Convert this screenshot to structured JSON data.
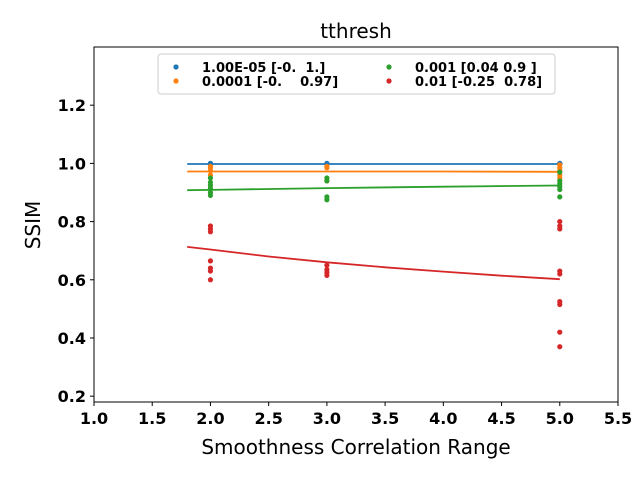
{
  "chart_data": {
    "type": "scatter",
    "title": "tthresh",
    "xlabel": "Smoothness Correlation Range",
    "ylabel": "SSIM",
    "xlim": [
      1.0,
      5.5
    ],
    "ylim": [
      0.18,
      1.4
    ],
    "xticks": [
      "1.0",
      "1.5",
      "2.0",
      "2.5",
      "3.0",
      "3.5",
      "4.0",
      "4.5",
      "5.0",
      "5.5"
    ],
    "yticks": [
      "0.2",
      "0.4",
      "0.6",
      "0.8",
      "1.0",
      "1.2"
    ],
    "grid": false,
    "legend_position": "top-center",
    "series": [
      {
        "name": "1.00E-05 [-0.  1.]",
        "color": "#1f77b4",
        "points": [
          [
            2,
            1.0
          ],
          [
            2,
            0.999
          ],
          [
            2,
            0.998
          ],
          [
            3,
            1.0
          ],
          [
            3,
            0.999
          ],
          [
            5,
            1.0
          ],
          [
            5,
            0.999
          ],
          [
            5,
            0.998
          ]
        ],
        "fit": [
          [
            1.8,
            0.998
          ],
          [
            2.0,
            0.998
          ],
          [
            3.0,
            0.998
          ],
          [
            4.0,
            0.998
          ],
          [
            5.0,
            0.998
          ]
        ]
      },
      {
        "name": "0.0001 [-0.    0.97]",
        "color": "#ff7f0e",
        "points": [
          [
            2,
            0.99
          ],
          [
            2,
            0.985
          ],
          [
            2,
            0.975
          ],
          [
            2,
            0.96
          ],
          [
            3,
            0.99
          ],
          [
            3,
            0.985
          ],
          [
            3,
            0.94
          ],
          [
            5,
            0.995
          ],
          [
            5,
            0.985
          ],
          [
            5,
            0.975
          ],
          [
            5,
            0.96
          ],
          [
            5,
            0.95
          ]
        ],
        "fit": [
          [
            1.8,
            0.972
          ],
          [
            2.0,
            0.972
          ],
          [
            3.0,
            0.972
          ],
          [
            4.0,
            0.972
          ],
          [
            5.0,
            0.971
          ]
        ]
      },
      {
        "name": "0.001 [0.04 0.9 ]",
        "color": "#2ca02c",
        "points": [
          [
            2,
            0.95
          ],
          [
            2,
            0.935
          ],
          [
            2,
            0.925
          ],
          [
            2,
            0.915
          ],
          [
            2,
            0.9
          ],
          [
            2,
            0.89
          ],
          [
            3,
            0.95
          ],
          [
            3,
            0.94
          ],
          [
            3,
            0.885
          ],
          [
            3,
            0.875
          ],
          [
            5,
            0.97
          ],
          [
            5,
            0.94
          ],
          [
            5,
            0.93
          ],
          [
            5,
            0.92
          ],
          [
            5,
            0.91
          ],
          [
            5,
            0.885
          ]
        ],
        "fit": [
          [
            1.8,
            0.908
          ],
          [
            2.0,
            0.909
          ],
          [
            3.0,
            0.915
          ],
          [
            4.0,
            0.92
          ],
          [
            5.0,
            0.924
          ]
        ]
      },
      {
        "name": "0.01 [-0.25  0.78]",
        "color": "#d62728",
        "points": [
          [
            2,
            0.785
          ],
          [
            2,
            0.775
          ],
          [
            2,
            0.765
          ],
          [
            2,
            0.665
          ],
          [
            2,
            0.64
          ],
          [
            2,
            0.63
          ],
          [
            2,
            0.6
          ],
          [
            3,
            0.65
          ],
          [
            3,
            0.635
          ],
          [
            3,
            0.625
          ],
          [
            3,
            0.615
          ],
          [
            5,
            0.8
          ],
          [
            5,
            0.785
          ],
          [
            5,
            0.775
          ],
          [
            5,
            0.63
          ],
          [
            5,
            0.62
          ],
          [
            5,
            0.525
          ],
          [
            5,
            0.515
          ],
          [
            5,
            0.42
          ],
          [
            5,
            0.37
          ]
        ],
        "fit": [
          [
            1.8,
            0.713
          ],
          [
            2.0,
            0.704
          ],
          [
            2.5,
            0.68
          ],
          [
            3.0,
            0.66
          ],
          [
            3.5,
            0.643
          ],
          [
            4.0,
            0.628
          ],
          [
            4.5,
            0.614
          ],
          [
            5.0,
            0.602
          ]
        ]
      }
    ]
  }
}
